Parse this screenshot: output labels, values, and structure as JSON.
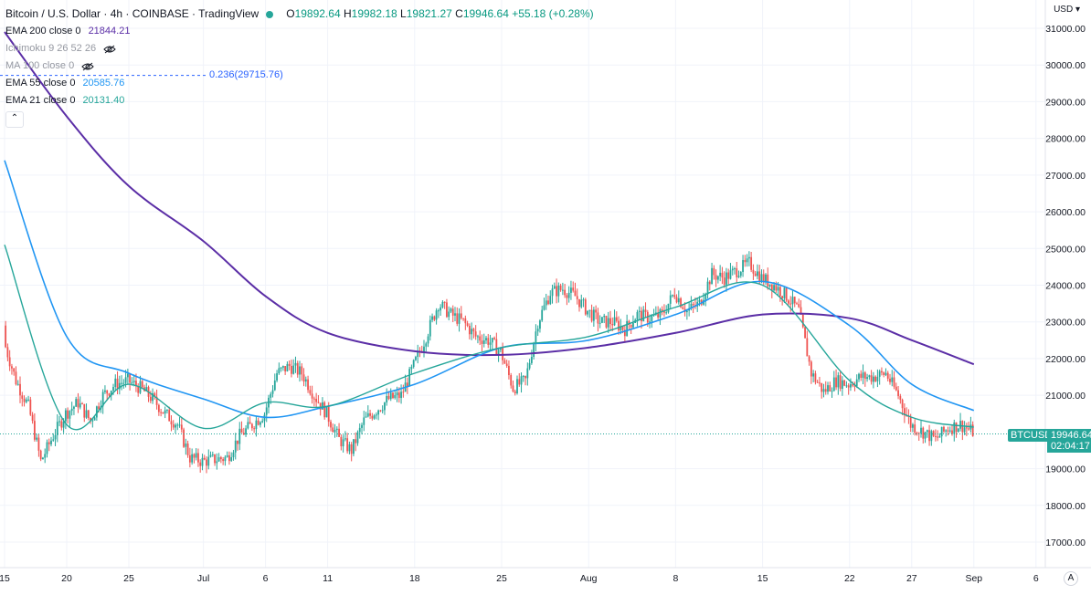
{
  "header": {
    "symbol_title": "Bitcoin / U.S. Dollar · 4h · COINBASE · TradingView",
    "ohlc": [
      {
        "label": "O",
        "value": "19892.64"
      },
      {
        "label": "H",
        "value": "19982.18"
      },
      {
        "label": "L",
        "value": "19821.27"
      },
      {
        "label": "C",
        "value": "19946.64"
      },
      {
        "label": "",
        "value": "+55.18 (+0.28%)"
      }
    ]
  },
  "indicators": [
    {
      "name": "EMA 200 close 0",
      "value": "21844.21",
      "color": "#5b2ea6"
    },
    {
      "name": "Ichimoku 9 26 52 26",
      "value": "",
      "color": "#9598a1"
    },
    {
      "name": "MA 100 close 0",
      "value": "",
      "color": "#9598a1"
    },
    {
      "name": "EMA 55 close 0",
      "value": "20585.76",
      "color": "#2196f3"
    },
    {
      "name": "EMA 21 close 0",
      "value": "20131.40",
      "color": "#26a69a"
    }
  ],
  "fib_label": "0.236(29715.76)",
  "price_axis": {
    "currency": "USD",
    "ticks": [
      "31000.00",
      "30000.00",
      "29000.00",
      "28000.00",
      "27000.00",
      "26000.00",
      "25000.00",
      "24000.00",
      "23000.00",
      "22000.00",
      "21000.00",
      "19000.00",
      "18000.00",
      "17000.00"
    ],
    "last_price": "19946.64",
    "countdown": "02:04:17",
    "symbol_tag": "BTCUSD"
  },
  "time_axis": {
    "labels": [
      "15",
      "20",
      "25",
      "Jul",
      "6",
      "11",
      "18",
      "25",
      "Aug",
      "8",
      "15",
      "22",
      "27",
      "Sep",
      "6"
    ]
  },
  "colors": {
    "up": "#26a69a",
    "down": "#ef5350",
    "ema200": "#5b2ea6",
    "ema55": "#2196f3",
    "ema21": "#26a69a"
  },
  "chart_data": {
    "type": "candlestick",
    "timeframe": "4h",
    "ylim": [
      16500,
      31500
    ],
    "close_path": [
      [
        "Jun 15",
        22500
      ],
      [
        "Jun 16",
        21400
      ],
      [
        "Jun 17",
        20700
      ],
      [
        "Jun 18",
        19200
      ],
      [
        "Jun 19",
        19900
      ],
      [
        "Jun 20",
        20500
      ],
      [
        "Jun 21",
        20800
      ],
      [
        "Jun 22",
        20300
      ],
      [
        "Jun 23",
        21000
      ],
      [
        "Jun 24",
        21300
      ],
      [
        "Jun 25",
        21400
      ],
      [
        "Jun 26",
        21200
      ],
      [
        "Jun 27",
        20900
      ],
      [
        "Jun 28",
        20500
      ],
      [
        "Jun 29",
        20200
      ],
      [
        "Jun 30",
        19300
      ],
      [
        "Jul 1",
        19200
      ],
      [
        "Jul 2",
        19250
      ],
      [
        "Jul 3",
        19300
      ],
      [
        "Jul 4",
        19900
      ],
      [
        "Jul 5",
        20200
      ],
      [
        "Jul 6",
        20500
      ],
      [
        "Jul 7",
        21600
      ],
      [
        "Jul 8",
        21800
      ],
      [
        "Jul 9",
        21600
      ],
      [
        "Jul 10",
        21000
      ],
      [
        "Jul 11",
        20500
      ],
      [
        "Jul 12",
        19800
      ],
      [
        "Jul 13",
        19500
      ],
      [
        "Jul 14",
        20300
      ],
      [
        "Jul 15",
        20600
      ],
      [
        "Jul 16",
        20900
      ],
      [
        "Jul 17",
        21000
      ],
      [
        "Jul 18",
        21800
      ],
      [
        "Jul 19",
        22600
      ],
      [
        "Jul 20",
        23500
      ],
      [
        "Jul 21",
        23200
      ],
      [
        "Jul 22",
        23000
      ],
      [
        "Jul 23",
        22600
      ],
      [
        "Jul 24",
        22500
      ],
      [
        "Jul 25",
        22200
      ],
      [
        "Jul 26",
        21200
      ],
      [
        "Jul 27",
        21400
      ],
      [
        "Jul 28",
        23000
      ],
      [
        "Jul 29",
        23800
      ],
      [
        "Jul 30",
        23900
      ],
      [
        "Jul 31",
        23700
      ],
      [
        "Aug 1",
        23300
      ],
      [
        "Aug 2",
        23000
      ],
      [
        "Aug 3",
        23000
      ],
      [
        "Aug 4",
        22800
      ],
      [
        "Aug 5",
        23200
      ],
      [
        "Aug 6",
        23100
      ],
      [
        "Aug 7",
        23200
      ],
      [
        "Aug 8",
        23800
      ],
      [
        "Aug 9",
        23300
      ],
      [
        "Aug 10",
        23500
      ],
      [
        "Aug 11",
        24300
      ],
      [
        "Aug 12",
        24200
      ],
      [
        "Aug 13",
        24400
      ],
      [
        "Aug 14",
        24600
      ],
      [
        "Aug 15",
        24200
      ],
      [
        "Aug 16",
        24000
      ],
      [
        "Aug 17",
        23700
      ],
      [
        "Aug 18",
        23300
      ],
      [
        "Aug 19",
        21600
      ],
      [
        "Aug 20",
        21100
      ],
      [
        "Aug 21",
        21400
      ],
      [
        "Aug 22",
        21300
      ],
      [
        "Aug 23",
        21500
      ],
      [
        "Aug 24",
        21500
      ],
      [
        "Aug 25",
        21600
      ],
      [
        "Aug 26",
        21000
      ],
      [
        "Aug 27",
        20200
      ],
      [
        "Aug 28",
        20000
      ],
      [
        "Aug 29",
        19800
      ],
      [
        "Aug 30",
        20100
      ],
      [
        "Aug 31",
        20200
      ],
      [
        "Sep 1",
        20000
      ]
    ],
    "ema200_path": [
      [
        "Jun 15",
        30900
      ],
      [
        "Jun 20",
        28600
      ],
      [
        "Jun 25",
        26700
      ],
      [
        "Jul 1",
        25200
      ],
      [
        "Jul 6",
        23700
      ],
      [
        "Jul 11",
        22700
      ],
      [
        "Jul 18",
        22200
      ],
      [
        "Jul 25",
        22100
      ],
      [
        "Aug 1",
        22300
      ],
      [
        "Aug 8",
        22700
      ],
      [
        "Aug 15",
        23200
      ],
      [
        "Aug 22",
        23100
      ],
      [
        "Aug 27",
        22500
      ],
      [
        "Sep 1",
        21844.21
      ]
    ],
    "ema55_path": [
      [
        "Jun 15",
        27400
      ],
      [
        "Jun 20",
        22600
      ],
      [
        "Jun 25",
        21600
      ],
      [
        "Jul 1",
        20900
      ],
      [
        "Jul 6",
        20400
      ],
      [
        "Jul 11",
        20700
      ],
      [
        "Jul 18",
        21300
      ],
      [
        "Jul 25",
        22300
      ],
      [
        "Aug 1",
        22500
      ],
      [
        "Aug 8",
        23200
      ],
      [
        "Aug 15",
        24100
      ],
      [
        "Aug 22",
        22900
      ],
      [
        "Aug 27",
        21300
      ],
      [
        "Sep 1",
        20585.76
      ]
    ],
    "ema21_path": [
      [
        "Jun 15",
        25100
      ],
      [
        "Jun 20",
        20200
      ],
      [
        "Jun 25",
        21300
      ],
      [
        "Jul 1",
        20100
      ],
      [
        "Jul 6",
        20800
      ],
      [
        "Jul 11",
        20700
      ],
      [
        "Jul 18",
        21600
      ],
      [
        "Jul 25",
        22300
      ],
      [
        "Aug 1",
        22600
      ],
      [
        "Aug 8",
        23400
      ],
      [
        "Aug 15",
        24000
      ],
      [
        "Aug 22",
        21400
      ],
      [
        "Aug 27",
        20400
      ],
      [
        "Sep 1",
        20131.4
      ]
    ],
    "fib_level": {
      "ratio": 0.236,
      "price": 29715.76
    },
    "last_close": 19946.64
  }
}
